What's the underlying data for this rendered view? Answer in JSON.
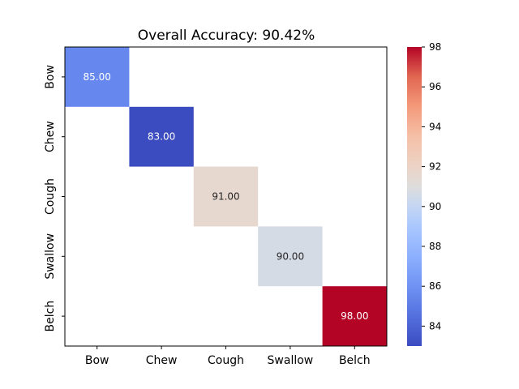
{
  "chart_data": {
    "type": "heatmap",
    "title": "Overall Accuracy: 90.42%",
    "x_categories": [
      "Bow",
      "Chew",
      "Cough",
      "Swallow",
      "Belch"
    ],
    "y_categories": [
      "Bow",
      "Chew",
      "Cough",
      "Swallow",
      "Belch"
    ],
    "cells": [
      {
        "row": 0,
        "col": 0,
        "value": 85.0,
        "label": "85.00",
        "color": "#6688ee",
        "text_color": "#ffffff"
      },
      {
        "row": 1,
        "col": 1,
        "value": 83.0,
        "label": "83.00",
        "color": "#3b4cc0",
        "text_color": "#ffffff"
      },
      {
        "row": 2,
        "col": 2,
        "value": 91.0,
        "label": "91.00",
        "color": "#e6d7cf",
        "text_color": "#262626"
      },
      {
        "row": 3,
        "col": 3,
        "value": 90.0,
        "label": "90.00",
        "color": "#d5dbe5",
        "text_color": "#262626"
      },
      {
        "row": 4,
        "col": 4,
        "value": 98.0,
        "label": "98.00",
        "color": "#b40426",
        "text_color": "#ffffff"
      }
    ],
    "colormap": "coolwarm",
    "colorbar": {
      "range": [
        83,
        98
      ],
      "ticks": [
        84,
        86,
        88,
        90,
        92,
        94,
        96,
        98
      ],
      "tick_labels": [
        "84",
        "86",
        "88",
        "90",
        "92",
        "94",
        "96",
        "98"
      ]
    },
    "grid": false
  }
}
